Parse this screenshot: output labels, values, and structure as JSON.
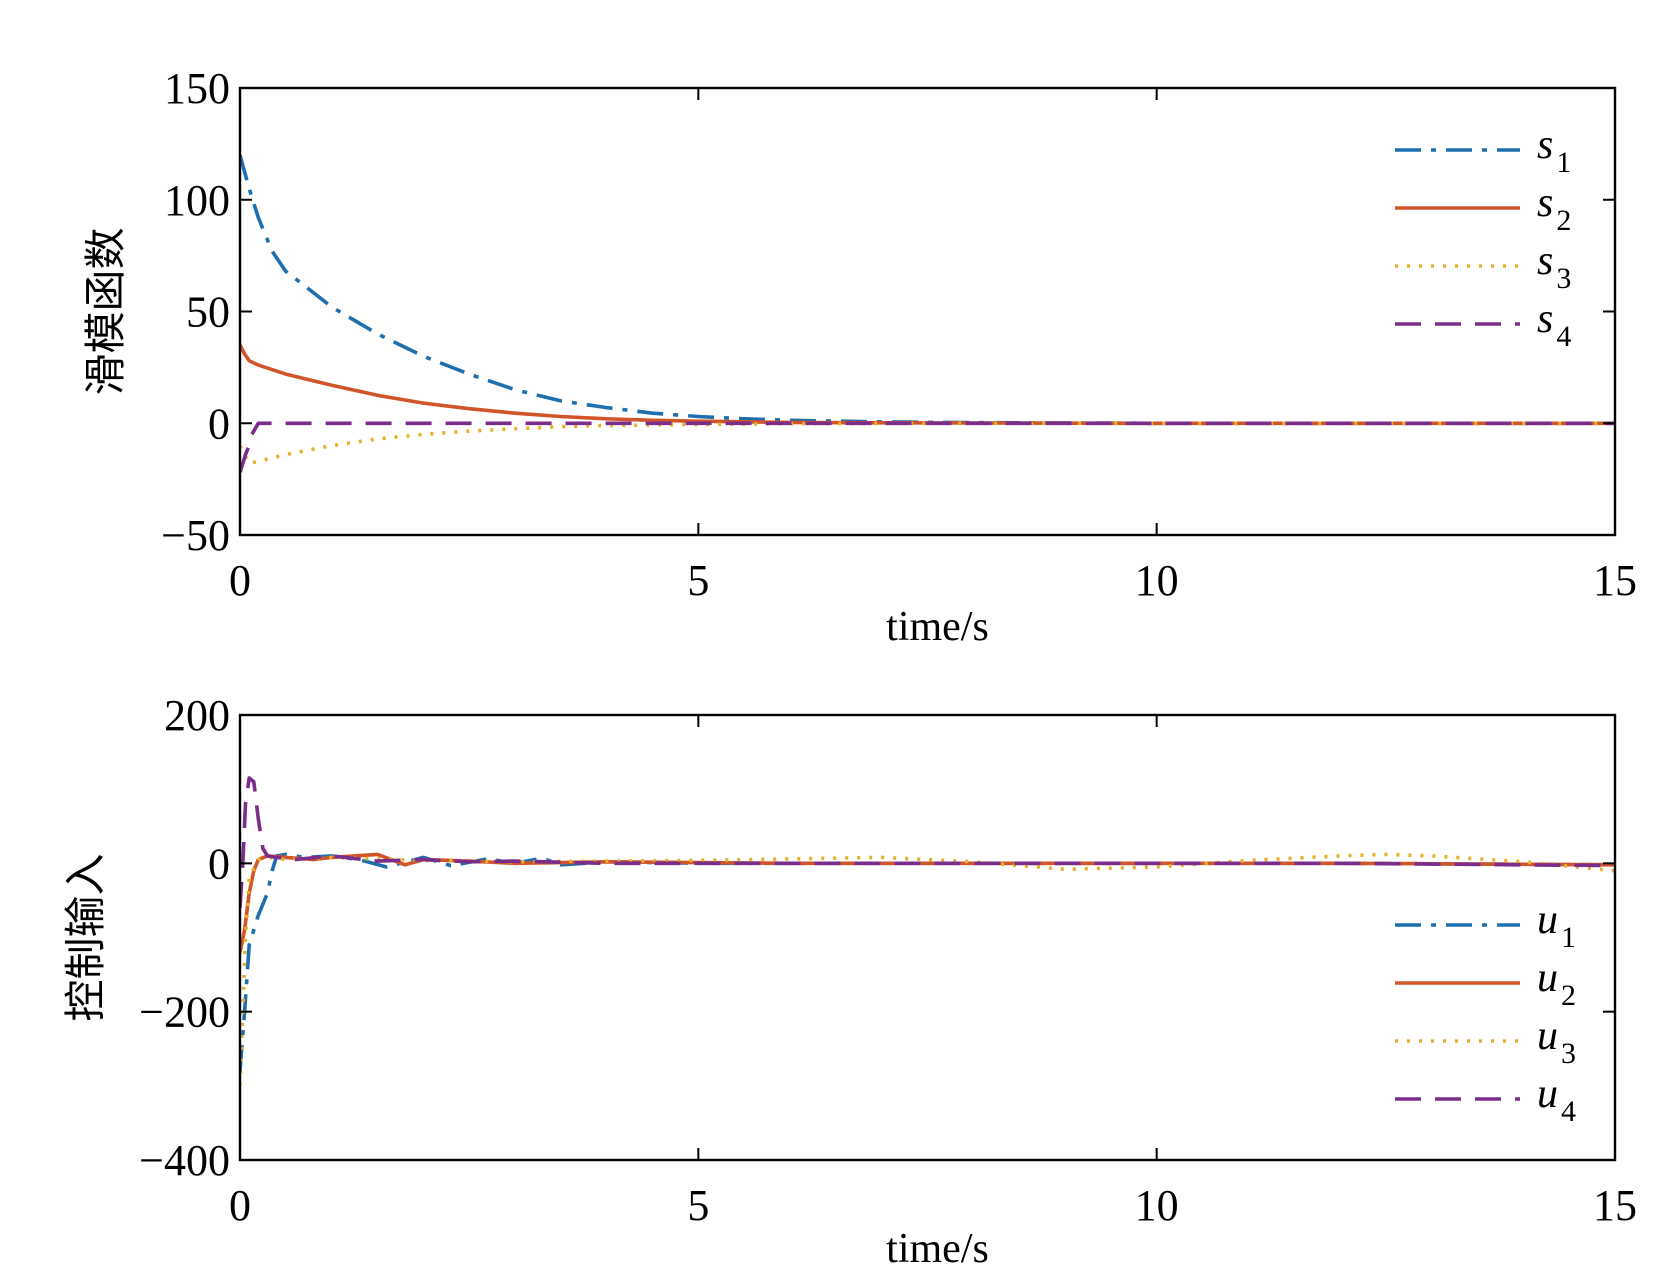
{
  "chart_data": [
    {
      "type": "line",
      "xlabel": "time/s",
      "ylabel": "滑模函数",
      "xlim": [
        0,
        15
      ],
      "ylim": [
        -50,
        150
      ],
      "xticks": [
        0,
        5,
        10,
        15
      ],
      "xtick_labels": [
        "0",
        "5",
        "10",
        "15"
      ],
      "yticks": [
        -50,
        0,
        50,
        100,
        150
      ],
      "ytick_labels": [
        "−50",
        "0",
        "50",
        "100",
        "150"
      ],
      "grid": false,
      "legend_position": "top-right",
      "series": [
        {
          "name": "s",
          "sub": "1",
          "color": "#1f6fae",
          "dash": "dash-dot",
          "x": [
            0,
            0.1,
            0.2,
            0.35,
            0.5,
            0.75,
            1,
            1.5,
            2,
            2.5,
            3,
            3.5,
            4,
            4.5,
            5,
            5.5,
            6,
            7,
            8,
            10,
            12,
            15
          ],
          "y": [
            120,
            105,
            92,
            77,
            68,
            60,
            52,
            40,
            30,
            22,
            15,
            10,
            7,
            4.5,
            3,
            2,
            1.3,
            0.6,
            0.3,
            0,
            0,
            0
          ]
        },
        {
          "name": "s",
          "sub": "2",
          "color": "#d2552a",
          "dash": "solid",
          "x": [
            0,
            0.05,
            0.1,
            0.2,
            0.5,
            1,
            1.5,
            2,
            2.5,
            3,
            3.5,
            4,
            4.5,
            5,
            6,
            7,
            8,
            10,
            12,
            15
          ],
          "y": [
            35,
            31,
            28,
            26,
            22,
            17,
            12.5,
            9,
            6.5,
            4.5,
            3,
            2,
            1.3,
            0.9,
            0.4,
            0.2,
            0.1,
            0,
            0,
            0
          ]
        },
        {
          "name": "s",
          "sub": "3",
          "color": "#e6b12a",
          "dash": "dotted",
          "x": [
            0,
            0.05,
            0.1,
            0.2,
            0.5,
            1,
            1.5,
            2,
            2.5,
            3,
            3.5,
            4,
            5,
            6,
            8,
            10,
            12,
            15
          ],
          "y": [
            -10,
            -14,
            -18,
            -17,
            -14,
            -10,
            -7,
            -5,
            -3.5,
            -2.5,
            -1.5,
            -1,
            -0.5,
            -0.2,
            0,
            0,
            0,
            0
          ]
        },
        {
          "name": "s",
          "sub": "4",
          "color": "#7b2d8b",
          "dash": "dashed",
          "x": [
            0,
            0.03,
            0.06,
            0.1,
            0.13,
            0.2,
            0.5,
            1,
            2,
            5,
            10,
            15
          ],
          "y": [
            -22,
            -18,
            -14,
            -10,
            -5,
            0,
            0,
            0,
            0,
            0,
            0,
            0
          ]
        }
      ]
    },
    {
      "type": "line",
      "xlabel": "time/s",
      "ylabel": "控制输入",
      "xlim": [
        0,
        15
      ],
      "ylim": [
        -400,
        200
      ],
      "xticks": [
        0,
        5,
        10,
        15
      ],
      "xtick_labels": [
        "0",
        "5",
        "10",
        "15"
      ],
      "yticks": [
        -400,
        -200,
        0,
        200
      ],
      "ytick_labels": [
        "−400",
        "−200",
        "0",
        "200"
      ],
      "grid": false,
      "legend_position": "bottom-right",
      "series": [
        {
          "name": "u",
          "sub": "1",
          "color": "#1f6fae",
          "dash": "dash-dot",
          "x": [
            0,
            0.05,
            0.1,
            0.2,
            0.3,
            0.35,
            0.4,
            0.5,
            0.7,
            1,
            1.3,
            1.6,
            2,
            2.3,
            2.7,
            3,
            3.3,
            3.5,
            4,
            5,
            6,
            8,
            10,
            12,
            15
          ],
          "y": [
            -280,
            -200,
            -110,
            -70,
            -40,
            -10,
            10,
            12,
            8,
            10,
            5,
            -5,
            8,
            -3,
            6,
            0,
            7,
            -2,
            2,
            0,
            0,
            0,
            0,
            0,
            -2
          ],
          "_note": "early transient"
        },
        {
          "name": "u",
          "sub": "2",
          "color": "#d2552a",
          "dash": "solid",
          "x": [
            0,
            0.05,
            0.1,
            0.15,
            0.2,
            0.3,
            0.5,
            0.8,
            1,
            1.5,
            1.8,
            2,
            2.5,
            3,
            4,
            5,
            6,
            8,
            10,
            12,
            15
          ],
          "y": [
            -120,
            -90,
            -40,
            -10,
            5,
            10,
            8,
            5,
            8,
            12,
            -2,
            5,
            3,
            0,
            2,
            1,
            0,
            0,
            0,
            0,
            -2
          ]
        },
        {
          "name": "u",
          "sub": "3",
          "color": "#e6b12a",
          "dash": "dotted",
          "x": [
            0,
            0.03,
            0.06,
            0.1,
            0.2,
            0.3,
            0.5,
            1,
            2,
            3,
            4,
            5,
            6,
            7,
            8,
            9,
            10,
            11,
            12,
            12.5,
            13,
            14,
            15
          ],
          "y": [
            -300,
            -200,
            -100,
            -20,
            5,
            8,
            5,
            8,
            4,
            2,
            3,
            4,
            6,
            8,
            2,
            -8,
            -5,
            4,
            10,
            12,
            10,
            2,
            -10
          ]
        },
        {
          "name": "u",
          "sub": "4",
          "color": "#7b2d8b",
          "dash": "dashed",
          "x": [
            0,
            0.03,
            0.06,
            0.1,
            0.15,
            0.2,
            0.25,
            0.3,
            0.4,
            0.6,
            1,
            1.5,
            2,
            2.5,
            3,
            4,
            5,
            8,
            10,
            12,
            15
          ],
          "y": [
            -60,
            0,
            80,
            115,
            110,
            60,
            20,
            10,
            8,
            5,
            10,
            3,
            5,
            2,
            3,
            0,
            0,
            0,
            0,
            0,
            -3
          ]
        }
      ]
    }
  ]
}
